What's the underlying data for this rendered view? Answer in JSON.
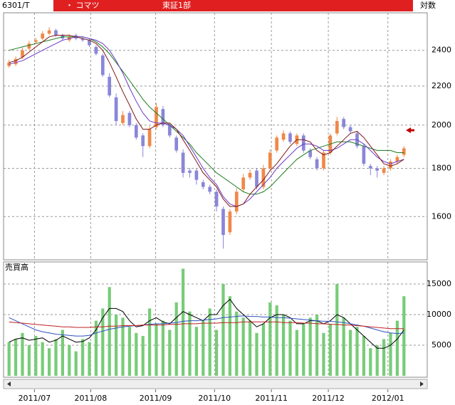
{
  "header": {
    "code": "6301/T",
    "name": "・ コマツ",
    "market": "東証1部",
    "scale": "対数"
  },
  "chart_data": [
    {
      "type": "candlestick",
      "log_scale": true,
      "grid": true,
      "ylim": [
        1440,
        2630
      ],
      "yticks": [
        1600,
        1800,
        2000,
        2200,
        2400
      ],
      "xlim": [
        0,
        60
      ],
      "up_color": "#f08848",
      "down_color": "#8a86d8",
      "open": [
        2310,
        2320,
        2360,
        2410,
        2450,
        2470,
        2500,
        2520,
        2490,
        2460,
        2490,
        2470,
        2460,
        2420,
        2370,
        2250,
        2140,
        2010,
        2060,
        2000,
        1950,
        1900,
        1990,
        2080,
        2000,
        1940,
        1870,
        1790,
        1790,
        1740,
        1720,
        1700,
        1630,
        1540,
        1620,
        1710,
        1760,
        1790,
        1720,
        1800,
        1880,
        1930,
        1960,
        1910,
        1950,
        1880,
        1840,
        1800,
        1870,
        1960,
        2030,
        1990,
        1960,
        1900,
        1810,
        1800,
        1780,
        1800,
        1830,
        1860
      ],
      "high": [
        2345,
        2365,
        2415,
        2455,
        2475,
        2515,
        2540,
        2530,
        2500,
        2495,
        2500,
        2480,
        2470,
        2430,
        2380,
        2270,
        2160,
        2070,
        2070,
        2010,
        1960,
        1995,
        2110,
        2095,
        2010,
        1950,
        1885,
        1800,
        1800,
        1750,
        1730,
        1710,
        1640,
        1630,
        1715,
        1775,
        1795,
        1800,
        1815,
        1885,
        1950,
        1975,
        1970,
        1960,
        1960,
        1890,
        1850,
        1880,
        1960,
        2040,
        2040,
        2000,
        1970,
        1910,
        1820,
        1810,
        1810,
        1840,
        1860,
        1900
      ],
      "low": [
        2300,
        2310,
        2350,
        2400,
        2440,
        2460,
        2490,
        2480,
        2460,
        2450,
        2460,
        2450,
        2420,
        2370,
        2250,
        2140,
        2000,
        2000,
        1990,
        1930,
        1850,
        1890,
        1980,
        1990,
        1940,
        1870,
        1760,
        1760,
        1730,
        1710,
        1690,
        1620,
        1480,
        1530,
        1610,
        1700,
        1750,
        1710,
        1710,
        1790,
        1870,
        1920,
        1910,
        1900,
        1870,
        1840,
        1790,
        1790,
        1860,
        1950,
        1980,
        1960,
        1890,
        1810,
        1770,
        1760,
        1770,
        1790,
        1820,
        1850
      ],
      "close": [
        2330,
        2350,
        2400,
        2440,
        2460,
        2500,
        2520,
        2490,
        2470,
        2480,
        2470,
        2460,
        2430,
        2380,
        2260,
        2150,
        2020,
        2050,
        2000,
        1940,
        1900,
        1980,
        2090,
        2000,
        1950,
        1880,
        1780,
        1780,
        1750,
        1720,
        1700,
        1640,
        1530,
        1620,
        1700,
        1760,
        1780,
        1720,
        1800,
        1870,
        1940,
        1960,
        1920,
        1950,
        1880,
        1850,
        1800,
        1870,
        1950,
        2020,
        1990,
        1970,
        1900,
        1820,
        1800,
        1790,
        1800,
        1830,
        1850,
        1890
      ],
      "lines": [
        {
          "color": "#1a7a1a",
          "values": [
            2400,
            2410,
            2420,
            2430,
            2440,
            2450,
            2460,
            2470,
            2480,
            2480,
            2480,
            2480,
            2470,
            2450,
            2420,
            2380,
            2330,
            2280,
            2230,
            2180,
            2130,
            2090,
            2060,
            2030,
            2000,
            1970,
            1940,
            1910,
            1870,
            1840,
            1810,
            1780,
            1760,
            1740,
            1720,
            1700,
            1690,
            1690,
            1700,
            1720,
            1750,
            1780,
            1810,
            1840,
            1860,
            1880,
            1890,
            1900,
            1910,
            1920,
            1920,
            1920,
            1910,
            1900,
            1890,
            1880,
            1880,
            1880,
            1870,
            1870
          ]
        },
        {
          "color": "#6a3ac8",
          "values": [
            2320,
            2330,
            2340,
            2360,
            2380,
            2400,
            2420,
            2440,
            2460,
            2470,
            2480,
            2480,
            2470,
            2460,
            2440,
            2400,
            2340,
            2270,
            2190,
            2120,
            2060,
            2020,
            2010,
            2010,
            2000,
            1980,
            1950,
            1900,
            1850,
            1800,
            1760,
            1730,
            1680,
            1650,
            1640,
            1650,
            1670,
            1700,
            1730,
            1760,
            1800,
            1830,
            1860,
            1890,
            1910,
            1910,
            1900,
            1880,
            1880,
            1890,
            1910,
            1930,
            1930,
            1910,
            1880,
            1850,
            1830,
            1820,
            1830,
            1840
          ]
        },
        {
          "color": "#801818",
          "values": [
            2330,
            2340,
            2360,
            2390,
            2420,
            2450,
            2480,
            2490,
            2490,
            2490,
            2480,
            2470,
            2460,
            2440,
            2400,
            2330,
            2250,
            2170,
            2100,
            2030,
            1980,
            1980,
            2000,
            2010,
            2010,
            1980,
            1930,
            1880,
            1830,
            1780,
            1750,
            1720,
            1670,
            1640,
            1640,
            1650,
            1690,
            1720,
            1750,
            1790,
            1820,
            1860,
            1900,
            1930,
            1930,
            1920,
            1880,
            1860,
            1870,
            1900,
            1930,
            1960,
            1970,
            1940,
            1900,
            1860,
            1820,
            1810,
            1820,
            1840
          ]
        }
      ]
    },
    {
      "type": "bar",
      "label": "売買高",
      "grid": true,
      "color": "#78cc78",
      "ylim": [
        0,
        18600
      ],
      "yticks": [
        5000,
        10000,
        15000
      ],
      "xlim": [
        0,
        60
      ],
      "xticks": [
        {
          "value": 4.3,
          "label": "2011/07"
        },
        {
          "value": 12.7,
          "label": "2011/08"
        },
        {
          "value": 22.4,
          "label": "2011/09"
        },
        {
          "value": 31.2,
          "label": "2011/10"
        },
        {
          "value": 39.7,
          "label": "2011/11"
        },
        {
          "value": 48.2,
          "label": "2011/12"
        },
        {
          "value": 57.1,
          "label": "2012/01"
        }
      ],
      "values": [
        5500,
        6000,
        7000,
        5000,
        6500,
        5500,
        4500,
        6000,
        7500,
        5000,
        4000,
        6000,
        5500,
        9000,
        11000,
        14500,
        10000,
        9500,
        8000,
        7000,
        6500,
        11000,
        8500,
        9000,
        7500,
        12000,
        17500,
        10500,
        8000,
        9000,
        11000,
        7500,
        15000,
        13000,
        10500,
        9500,
        9000,
        7000,
        8500,
        12000,
        11500,
        10000,
        9000,
        7500,
        8500,
        9500,
        10000,
        7000,
        8500,
        15000,
        9500,
        7500,
        8000,
        6500,
        4500,
        5000,
        6000,
        7000,
        9000,
        13000
      ],
      "lines": [
        {
          "color": "#000000",
          "values": [
            5500,
            6000,
            6200,
            5800,
            6000,
            6200,
            5500,
            5800,
            6500,
            6000,
            5500,
            5600,
            6200,
            7500,
            9500,
            11000,
            11000,
            10500,
            9000,
            8000,
            8200,
            9000,
            9500,
            8800,
            8500,
            9500,
            10500,
            10000,
            9500,
            9000,
            10000,
            10000,
            11500,
            12500,
            11000,
            10000,
            9000,
            8000,
            8500,
            9500,
            10000,
            10000,
            9500,
            8500,
            8500,
            9000,
            9000,
            8500,
            9000,
            10000,
            9500,
            8500,
            7500,
            6500,
            5500,
            4500,
            4500,
            5000,
            6000,
            7500
          ]
        },
        {
          "color": "#3050c0",
          "values": [
            9500,
            9000,
            8500,
            8000,
            7500,
            7200,
            7000,
            6800,
            6700,
            6600,
            6500,
            6500,
            6600,
            7000,
            7300,
            7600,
            7800,
            8000,
            8100,
            8200,
            8300,
            8400,
            8500,
            8500,
            8600,
            8700,
            8900,
            9000,
            9000,
            9100,
            9200,
            9300,
            9500,
            9600,
            9700,
            9800,
            9700,
            9700,
            9600,
            9600,
            9500,
            9500,
            9400,
            9300,
            9200,
            9100,
            9000,
            8900,
            8900,
            8800,
            8700,
            8500,
            8300,
            8100,
            7800,
            7500,
            7200,
            7000,
            6900,
            7000
          ]
        },
        {
          "color": "#c02020",
          "values": [
            8800,
            8700,
            8600,
            8500,
            8400,
            8300,
            8200,
            8100,
            8000,
            8000,
            7900,
            7900,
            7900,
            8000,
            8000,
            8100,
            8100,
            8200,
            8200,
            8200,
            8300,
            8300,
            8300,
            8300,
            8400,
            8400,
            8500,
            8500,
            8500,
            8600,
            8600,
            8600,
            8700,
            8700,
            8700,
            8800,
            8800,
            8800,
            8800,
            8800,
            8800,
            8700,
            8700,
            8700,
            8600,
            8600,
            8500,
            8500,
            8400,
            8400,
            8300,
            8300,
            8200,
            8100,
            8000,
            7900,
            7800,
            7700,
            7700,
            7700
          ]
        }
      ]
    }
  ]
}
